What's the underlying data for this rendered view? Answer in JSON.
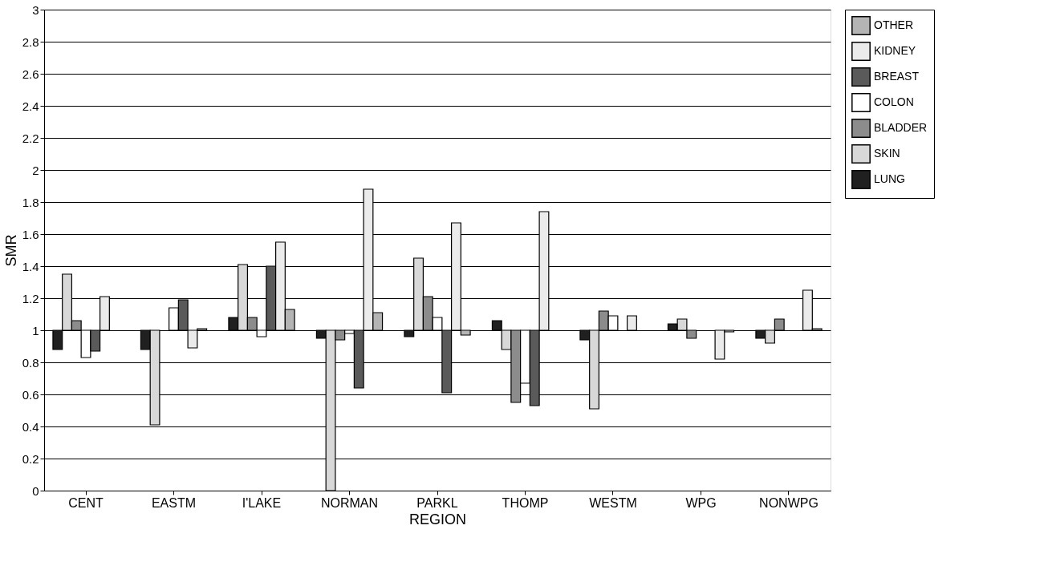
{
  "chart_data": {
    "type": "bar",
    "xlabel": "REGION",
    "ylabel": "SMR",
    "categories": [
      "CENT",
      "EASTM",
      "I'LAKE",
      "NORMAN",
      "PARKL",
      "THOMP",
      "WESTM",
      "WPG",
      "NONWPG"
    ],
    "ylim": [
      0,
      3
    ],
    "yticks": [
      0,
      0.2,
      0.4,
      0.6,
      0.8,
      1,
      1.2,
      1.4,
      1.6,
      1.8,
      2,
      2.2,
      2.4,
      2.6,
      2.8,
      3
    ],
    "grid": "y",
    "legend": "right",
    "series": [
      {
        "name": "LUNG",
        "color": "#202020",
        "base": [
          1,
          1,
          1,
          1,
          1,
          1,
          1,
          1,
          1
        ],
        "values": [
          -0.12,
          -0.12,
          0.08,
          -0.05,
          -0.04,
          0.06,
          -0.06,
          0.04,
          -0.05
        ]
      },
      {
        "name": "SKIN",
        "color": "#d8d8d8",
        "base": [
          1,
          1,
          1,
          1,
          1,
          1,
          1,
          1,
          1
        ],
        "values": [
          0.35,
          -0.59,
          0.41,
          -1.0,
          0.45,
          -0.12,
          -0.49,
          0.07,
          -0.08
        ]
      },
      {
        "name": "BLADDER",
        "color": "#8c8c8c",
        "base": [
          1,
          null,
          1,
          1,
          1,
          1,
          1,
          1,
          1
        ],
        "values": [
          0.06,
          null,
          0.08,
          -0.06,
          0.21,
          -0.45,
          0.12,
          -0.05,
          0.07
        ]
      },
      {
        "name": "COLON",
        "color": "#ffffff",
        "base": [
          1,
          1,
          1,
          1,
          1,
          1,
          1,
          null,
          null
        ],
        "values": [
          -0.17,
          0.14,
          -0.04,
          -0.02,
          0.08,
          -0.33,
          0.09,
          null,
          null
        ]
      },
      {
        "name": "BREAST",
        "color": "#5a5a5a",
        "base": [
          1,
          1,
          1,
          1,
          1,
          1,
          null,
          null,
          null
        ],
        "values": [
          -0.13,
          0.19,
          0.4,
          -0.36,
          -0.39,
          -0.47,
          null,
          null,
          null
        ]
      },
      {
        "name": "KIDNEY",
        "color": "#ebebeb",
        "base": [
          1,
          1,
          1,
          1,
          1,
          1,
          1,
          1,
          1
        ],
        "values": [
          0.21,
          -0.11,
          0.55,
          0.88,
          0.67,
          0.74,
          0.09,
          -0.18,
          0.25
        ]
      },
      {
        "name": "OTHER",
        "color": "#b4b4b4",
        "base": [
          null,
          1,
          1,
          1,
          1,
          null,
          null,
          1,
          1
        ],
        "values": [
          null,
          0.01,
          0.13,
          0.11,
          -0.03,
          null,
          null,
          -0.01,
          0.01
        ]
      }
    ]
  }
}
